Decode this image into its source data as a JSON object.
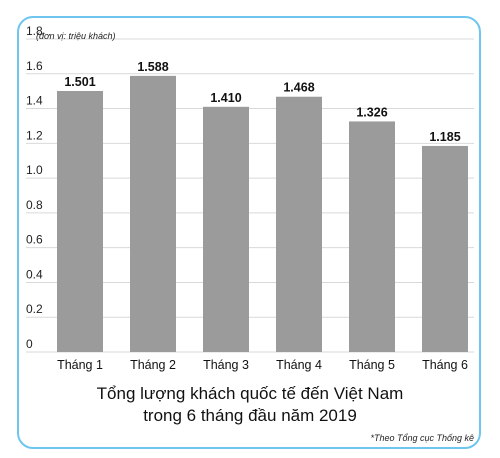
{
  "chart_data": {
    "type": "bar",
    "categories": [
      "Tháng 1",
      "Tháng 2",
      "Tháng 3",
      "Tháng 4",
      "Tháng 5",
      "Tháng 6"
    ],
    "values": [
      1.501,
      1.588,
      1.41,
      1.468,
      1.326,
      1.185
    ],
    "data_labels": [
      "1.501",
      "1.588",
      "1.410",
      "1.468",
      "1.326",
      "1.185"
    ],
    "title_lines": [
      "Tổng lượng khách quốc tế đến Việt Nam",
      "trong 6 tháng đầu năm 2019"
    ],
    "unit_note": "(đơn vị: triệu khách)",
    "source": "*Theo Tổng cục Thống kê",
    "y_ticks": [
      "0",
      "0.2",
      "0.4",
      "0.6",
      "0.8",
      "1.0",
      "1.2",
      "1.4",
      "1.6",
      "1.8"
    ],
    "ylim": [
      0,
      1.8
    ],
    "grid": true,
    "bar_color": "#9b9b9b",
    "grid_color": "#d9d9d9",
    "frame_color": "#6ec6ee"
  }
}
